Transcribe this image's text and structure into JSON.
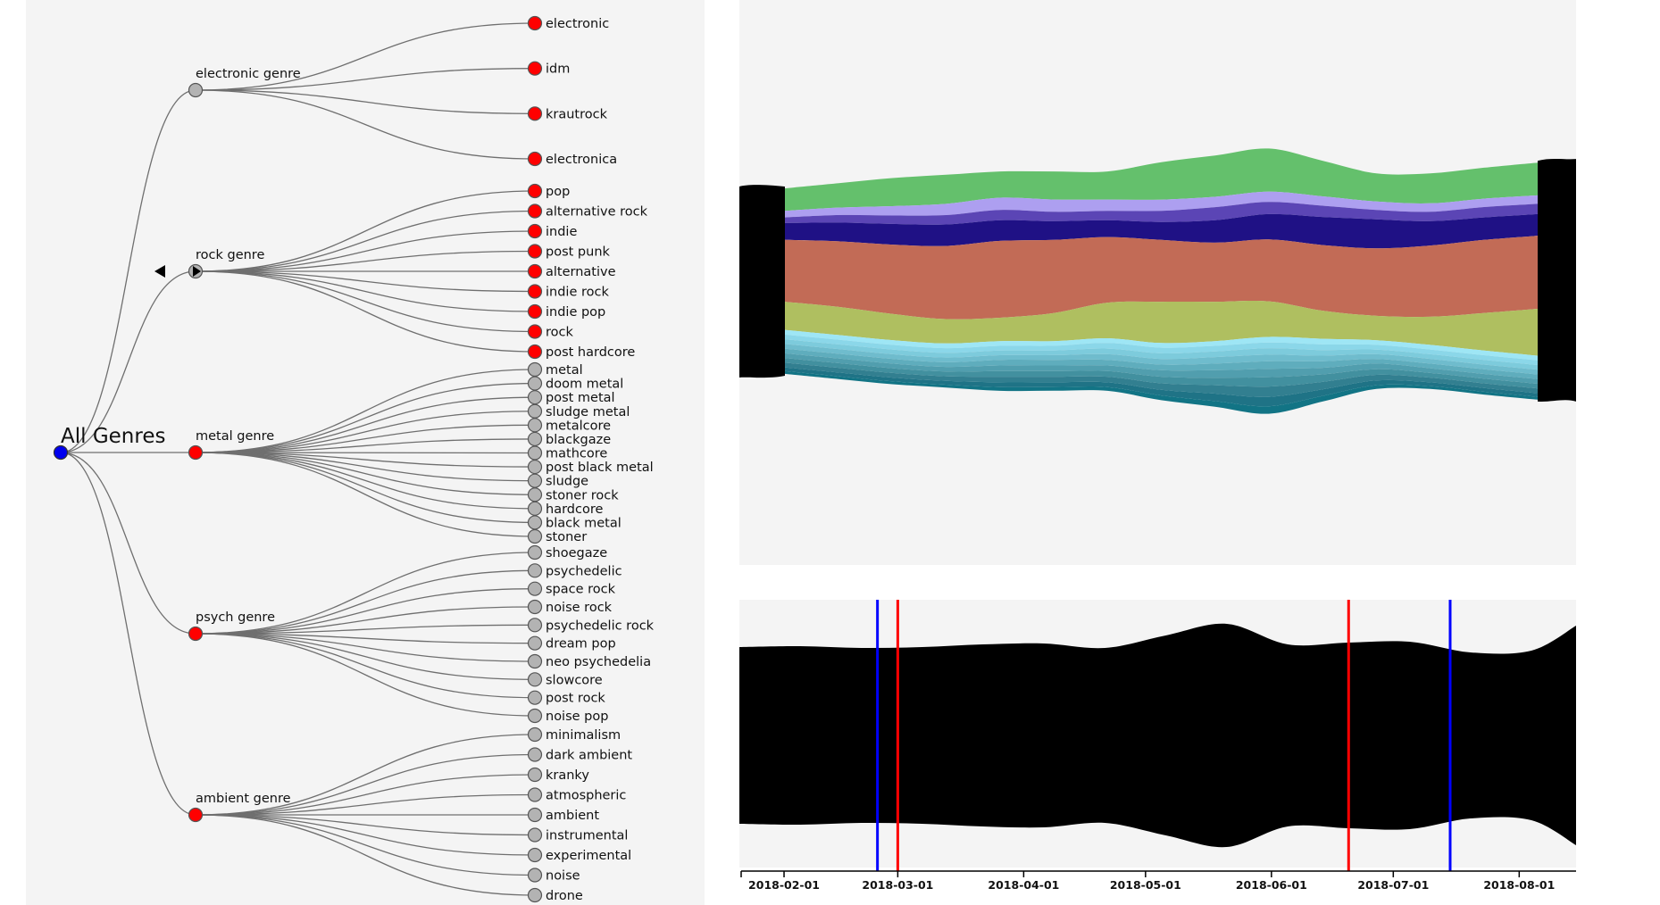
{
  "colors": {
    "root_node": "#0000ee",
    "expanded_node": "#ff0000",
    "collapsed_node": "#b3b3b3",
    "link": "#6f6f6f",
    "panel_background": "#f4f4f4",
    "brush_outer": "#0000ff",
    "brush_inner": "#ff0000",
    "series": [
      "#64c06c",
      "#ad9ff0",
      "#5b45b5",
      "#1f1185",
      "#c26b56",
      "#afbf60",
      "#9ee6f5",
      "#8bd7e9",
      "#7dcbdc",
      "#6fbccd",
      "#5fadbd",
      "#519eae",
      "#42909f",
      "#327f90",
      "#1f7386",
      "#127485"
    ]
  },
  "tree": {
    "root": {
      "label": "All Genres",
      "state": "root"
    },
    "groups": [
      {
        "label": "electronic genre",
        "state": "collapsed",
        "children": [
          {
            "label": "electronic",
            "state": "expanded"
          },
          {
            "label": "idm",
            "state": "expanded"
          },
          {
            "label": "krautrock",
            "state": "expanded"
          },
          {
            "label": "electronica",
            "state": "expanded"
          }
        ]
      },
      {
        "label": "rock genre",
        "state": "selected",
        "marker": "triangle-left-icon",
        "children": [
          {
            "label": "pop",
            "state": "expanded"
          },
          {
            "label": "alternative rock",
            "state": "expanded"
          },
          {
            "label": "indie",
            "state": "expanded"
          },
          {
            "label": "post punk",
            "state": "expanded"
          },
          {
            "label": "alternative",
            "state": "expanded"
          },
          {
            "label": "indie rock",
            "state": "expanded"
          },
          {
            "label": "indie pop",
            "state": "expanded"
          },
          {
            "label": "rock",
            "state": "expanded"
          },
          {
            "label": "post hardcore",
            "state": "expanded"
          }
        ]
      },
      {
        "label": "metal genre",
        "state": "expanded",
        "children": [
          {
            "label": "metal",
            "state": "collapsed"
          },
          {
            "label": "doom metal",
            "state": "collapsed"
          },
          {
            "label": "post metal",
            "state": "collapsed"
          },
          {
            "label": "sludge metal",
            "state": "collapsed"
          },
          {
            "label": "metalcore",
            "state": "collapsed"
          },
          {
            "label": "blackgaze",
            "state": "collapsed"
          },
          {
            "label": "mathcore",
            "state": "collapsed"
          },
          {
            "label": "post black metal",
            "state": "collapsed"
          },
          {
            "label": "sludge",
            "state": "collapsed"
          },
          {
            "label": "stoner rock",
            "state": "collapsed"
          },
          {
            "label": "hardcore",
            "state": "collapsed"
          },
          {
            "label": "black metal",
            "state": "collapsed"
          },
          {
            "label": "stoner",
            "state": "collapsed"
          }
        ]
      },
      {
        "label": "psych genre",
        "state": "expanded",
        "children": [
          {
            "label": "shoegaze",
            "state": "collapsed"
          },
          {
            "label": "psychedelic",
            "state": "collapsed"
          },
          {
            "label": "space rock",
            "state": "collapsed"
          },
          {
            "label": "noise rock",
            "state": "collapsed"
          },
          {
            "label": "psychedelic rock",
            "state": "collapsed"
          },
          {
            "label": "dream pop",
            "state": "collapsed"
          },
          {
            "label": "neo psychedelia",
            "state": "collapsed"
          },
          {
            "label": "slowcore",
            "state": "collapsed"
          },
          {
            "label": "post rock",
            "state": "collapsed"
          },
          {
            "label": "noise pop",
            "state": "collapsed"
          }
        ]
      },
      {
        "label": "ambient genre",
        "state": "expanded",
        "children": [
          {
            "label": "minimalism",
            "state": "collapsed"
          },
          {
            "label": "dark ambient",
            "state": "collapsed"
          },
          {
            "label": "kranky",
            "state": "collapsed"
          },
          {
            "label": "atmospheric",
            "state": "collapsed"
          },
          {
            "label": "ambient",
            "state": "collapsed"
          },
          {
            "label": "instrumental",
            "state": "collapsed"
          },
          {
            "label": "experimental",
            "state": "collapsed"
          },
          {
            "label": "noise",
            "state": "collapsed"
          },
          {
            "label": "drone",
            "state": "collapsed"
          }
        ]
      }
    ]
  },
  "chart_data": [
    {
      "type": "area",
      "subtype": "streamgraph",
      "x": [
        "2018-01-21",
        "2018-02-05",
        "2018-02-20",
        "2018-03-07",
        "2018-03-22",
        "2018-04-06",
        "2018-04-21",
        "2018-05-06",
        "2018-05-21",
        "2018-06-05",
        "2018-06-20",
        "2018-07-05",
        "2018-07-20",
        "2018-08-04",
        "2018-08-15"
      ],
      "series": [
        {
          "values": [
            24,
            26,
            30,
            31,
            28,
            30,
            30,
            40,
            44,
            46,
            38,
            30,
            32,
            33,
            35
          ]
        },
        {
          "values": [
            7,
            8,
            10,
            12,
            13,
            13,
            12,
            12,
            11,
            11,
            10,
            9,
            9,
            9,
            9
          ]
        },
        {
          "values": [
            6,
            8,
            9,
            10,
            11,
            10,
            10,
            12,
            14,
            13,
            12,
            10,
            10,
            11,
            11
          ]
        },
        {
          "values": [
            18,
            20,
            22,
            23,
            22,
            20,
            18,
            19,
            24,
            27,
            30,
            31,
            26,
            24,
            23
          ]
        },
        {
          "values": [
            66,
            70,
            74,
            78,
            82,
            78,
            70,
            66,
            63,
            66,
            70,
            72,
            76,
            78,
            78
          ]
        },
        {
          "values": [
            30,
            30,
            28,
            26,
            25,
            30,
            38,
            44,
            42,
            38,
            30,
            26,
            30,
            40,
            50
          ]
        },
        {
          "values": [
            5,
            5,
            5,
            5,
            5,
            5,
            5,
            5,
            5,
            6,
            6,
            5,
            5,
            5,
            5
          ]
        },
        {
          "values": [
            5,
            5,
            5,
            5,
            5,
            5,
            6,
            6,
            6,
            6,
            6,
            5,
            5,
            5,
            5
          ]
        },
        {
          "values": [
            5,
            5,
            5,
            5,
            5,
            5,
            6,
            6,
            6,
            7,
            6,
            5,
            5,
            5,
            5
          ]
        },
        {
          "values": [
            5,
            5,
            5,
            5,
            5,
            5,
            6,
            6,
            7,
            7,
            6,
            5,
            5,
            5,
            5
          ]
        },
        {
          "values": [
            5,
            5,
            5,
            5,
            6,
            6,
            6,
            6,
            7,
            8,
            7,
            5,
            5,
            5,
            5
          ]
        },
        {
          "values": [
            5,
            5,
            5,
            5,
            6,
            6,
            6,
            7,
            8,
            9,
            7,
            6,
            5,
            5,
            5
          ]
        },
        {
          "values": [
            5,
            5,
            5,
            5,
            6,
            6,
            6,
            7,
            8,
            10,
            8,
            6,
            5,
            5,
            5
          ]
        },
        {
          "values": [
            5,
            5,
            5,
            5,
            6,
            6,
            6,
            7,
            9,
            11,
            8,
            6,
            5,
            5,
            5
          ]
        },
        {
          "values": [
            4,
            4,
            4,
            4,
            5,
            5,
            5,
            6,
            8,
            10,
            7,
            5,
            4,
            4,
            4
          ]
        },
        {
          "values": [
            3,
            3,
            3,
            3,
            4,
            4,
            4,
            5,
            6,
            8,
            6,
            4,
            3,
            3,
            3
          ]
        }
      ]
    },
    {
      "type": "area",
      "subtype": "overview-streamgraph",
      "x": [
        "2018-01-21",
        "2018-02-05",
        "2018-02-20",
        "2018-03-07",
        "2018-03-22",
        "2018-04-06",
        "2018-04-21",
        "2018-05-06",
        "2018-05-21",
        "2018-06-05",
        "2018-06-20",
        "2018-07-05",
        "2018-07-20",
        "2018-08-04",
        "2018-08-15"
      ],
      "values": [
        198,
        200,
        196,
        198,
        204,
        206,
        196,
        224,
        250,
        204,
        208,
        210,
        186,
        190,
        246
      ],
      "x_ticks": [
        "2018-02-01",
        "2018-03-01",
        "2018-04-01",
        "2018-05-01",
        "2018-06-01",
        "2018-07-01",
        "2018-08-01"
      ],
      "brush_lines": [
        {
          "date": "2018-02-24",
          "color": "#0000ff"
        },
        {
          "date": "2018-03-01",
          "color": "#ff0000"
        },
        {
          "date": "2018-06-20",
          "color": "#ff0000"
        },
        {
          "date": "2018-07-15",
          "color": "#0000ff"
        }
      ]
    }
  ]
}
